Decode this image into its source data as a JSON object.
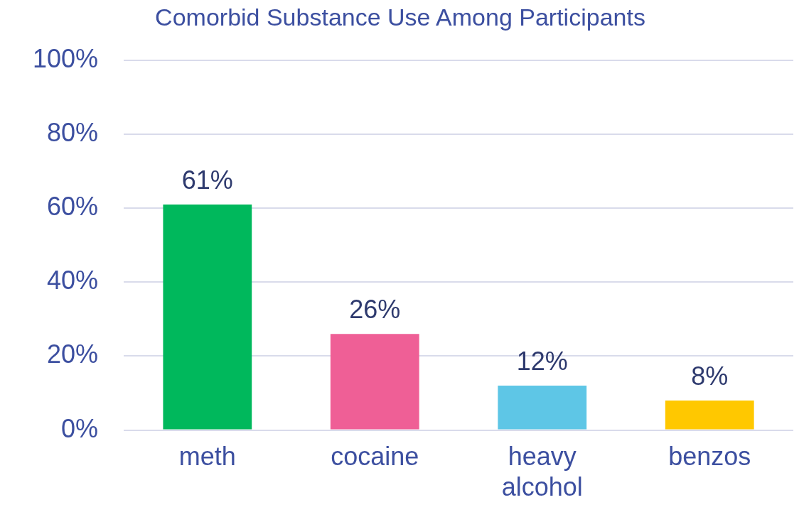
{
  "chart_data": {
    "type": "bar",
    "title": "Comorbid Substance Use Among Participants",
    "categories": [
      "meth",
      "cocaine",
      "heavy alcohol",
      "benzos"
    ],
    "values": [
      61,
      26,
      12,
      8
    ],
    "colors": [
      "#00b85c",
      "#ef5f96",
      "#5ec6e6",
      "#ffc800"
    ],
    "value_labels": [
      "61%",
      "26%",
      "12%",
      "8%"
    ],
    "ylim": [
      0,
      100
    ],
    "yticks": [
      {
        "value": 0,
        "label": "0%"
      },
      {
        "value": 20,
        "label": "20%"
      },
      {
        "value": 40,
        "label": "40%"
      },
      {
        "value": 60,
        "label": "60%"
      },
      {
        "value": 80,
        "label": "80%"
      },
      {
        "value": 100,
        "label": "100%"
      }
    ],
    "grid": "y",
    "legend": false
  }
}
